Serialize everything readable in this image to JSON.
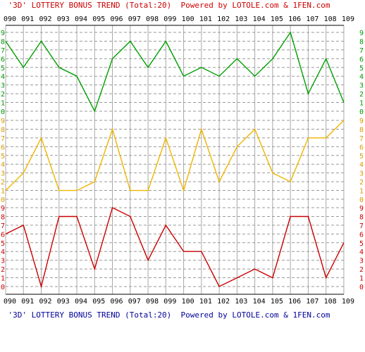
{
  "header": {
    "title_top": "'3D' LOTTERY BONUS TREND (Total:20)  Powered by LOTOLE.com & 1FEN.com",
    "title_bottom": "'3D' LOTTERY BONUS TREND (Total:20)  Powered by LOTOLE.com & 1FEN.com"
  },
  "colors": {
    "title_top": "#cc0000",
    "title_bottom": "#000099",
    "tick_labels": "#000000",
    "grid_vertical": "#a8a8a8",
    "grid_horizontal": "#999999",
    "frame": "#000000",
    "digit_labels_bands": [
      "#009900",
      "#dd9900",
      "#cc0000"
    ]
  },
  "chart_data": {
    "type": "line",
    "title": "'3D' LOTTERY BONUS TREND (Total:20)",
    "categories": [
      "090",
      "091",
      "092",
      "093",
      "094",
      "095",
      "096",
      "097",
      "098",
      "099",
      "100",
      "101",
      "102",
      "103",
      "104",
      "105",
      "106",
      "107",
      "108",
      "109"
    ],
    "y_tick_labels": [
      "0",
      "1",
      "2",
      "3",
      "4",
      "5",
      "6",
      "7",
      "8",
      "9"
    ],
    "ylim": [
      0,
      9
    ],
    "grid": true,
    "series": [
      {
        "color": "#00a000",
        "values": [
          8,
          5,
          8,
          5,
          4,
          0,
          6,
          8,
          5,
          8,
          4,
          5,
          4,
          6,
          4,
          6,
          9,
          2,
          6,
          1
        ]
      },
      {
        "color": "#f0b400",
        "values": [
          1,
          3,
          7,
          1,
          1,
          2,
          8,
          1,
          1,
          7,
          1,
          8,
          2,
          6,
          8,
          3,
          2,
          7,
          7,
          9
        ]
      },
      {
        "color": "#cc0000",
        "values": [
          6,
          7,
          0,
          8,
          8,
          2,
          9,
          8,
          3,
          7,
          4,
          4,
          0,
          1,
          2,
          1,
          8,
          8,
          1,
          5
        ]
      }
    ]
  }
}
